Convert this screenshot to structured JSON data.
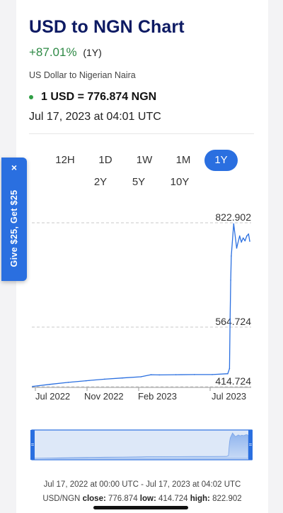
{
  "header": {
    "title": "USD to NGN Chart",
    "change": "+87.01%",
    "change_period": "(1Y)",
    "subtitle": "US Dollar to Nigerian Naira",
    "rate": "1 USD = 776.874 NGN",
    "timestamp": "Jul 17, 2023 at 04:01 UTC"
  },
  "tabs": [
    {
      "label": "12H",
      "active": false
    },
    {
      "label": "1D",
      "active": false
    },
    {
      "label": "1W",
      "active": false
    },
    {
      "label": "1M",
      "active": false
    },
    {
      "label": "1Y",
      "active": true
    },
    {
      "label": "2Y",
      "active": false
    },
    {
      "label": "5Y",
      "active": false
    },
    {
      "label": "10Y",
      "active": false
    }
  ],
  "promo": {
    "label": "Give $25, Get $25",
    "close": "×"
  },
  "colors": {
    "accent": "#2a6fe0",
    "title": "#0d1a63",
    "positive": "#2f8a46",
    "line": "#2a6fe0"
  },
  "chart_data": {
    "type": "line",
    "title": "",
    "xlabel": "",
    "ylabel": "",
    "y_ticks": [
      "822.902",
      "564.724",
      "414.724"
    ],
    "x_ticks": [
      "Jul 2022",
      "Nov 2022",
      "Feb 2023",
      "Jul 2023"
    ],
    "ylim": [
      414.724,
      822.902
    ],
    "series": [
      {
        "name": "",
        "x": [
          "2022-07-17",
          "2022-08-15",
          "2022-09-15",
          "2022-10-15",
          "2022-11-15",
          "2022-12-15",
          "2023-01-15",
          "2023-02-01",
          "2023-02-15",
          "2023-03-15",
          "2023-04-15",
          "2023-05-15",
          "2023-06-10",
          "2023-06-13",
          "2023-06-14",
          "2023-06-15",
          "2023-06-16",
          "2023-06-20",
          "2023-06-25",
          "2023-06-30",
          "2023-07-03",
          "2023-07-06",
          "2023-07-09",
          "2023-07-12",
          "2023-07-15",
          "2023-07-17"
        ],
        "values": [
          415.5,
          420.5,
          425.5,
          429.5,
          433.5,
          436.5,
          439.5,
          444.5,
          444.0,
          444.5,
          445.0,
          445.0,
          447.0,
          460.0,
          580.0,
          680.0,
          740.0,
          820.0,
          760.0,
          790.0,
          775.0,
          785.0,
          778.0,
          790.0,
          795.0,
          776.874
        ]
      }
    ]
  },
  "range": {
    "dates": "Jul 17, 2022 at 00:00 UTC - Jul 17, 2023 at 04:02 UTC",
    "pair": "USD/NGN",
    "close_label": "close:",
    "close_value": "776.874",
    "low_label": "low:",
    "low_value": "414.724",
    "high_label": "high:",
    "high_value": "822.902"
  }
}
